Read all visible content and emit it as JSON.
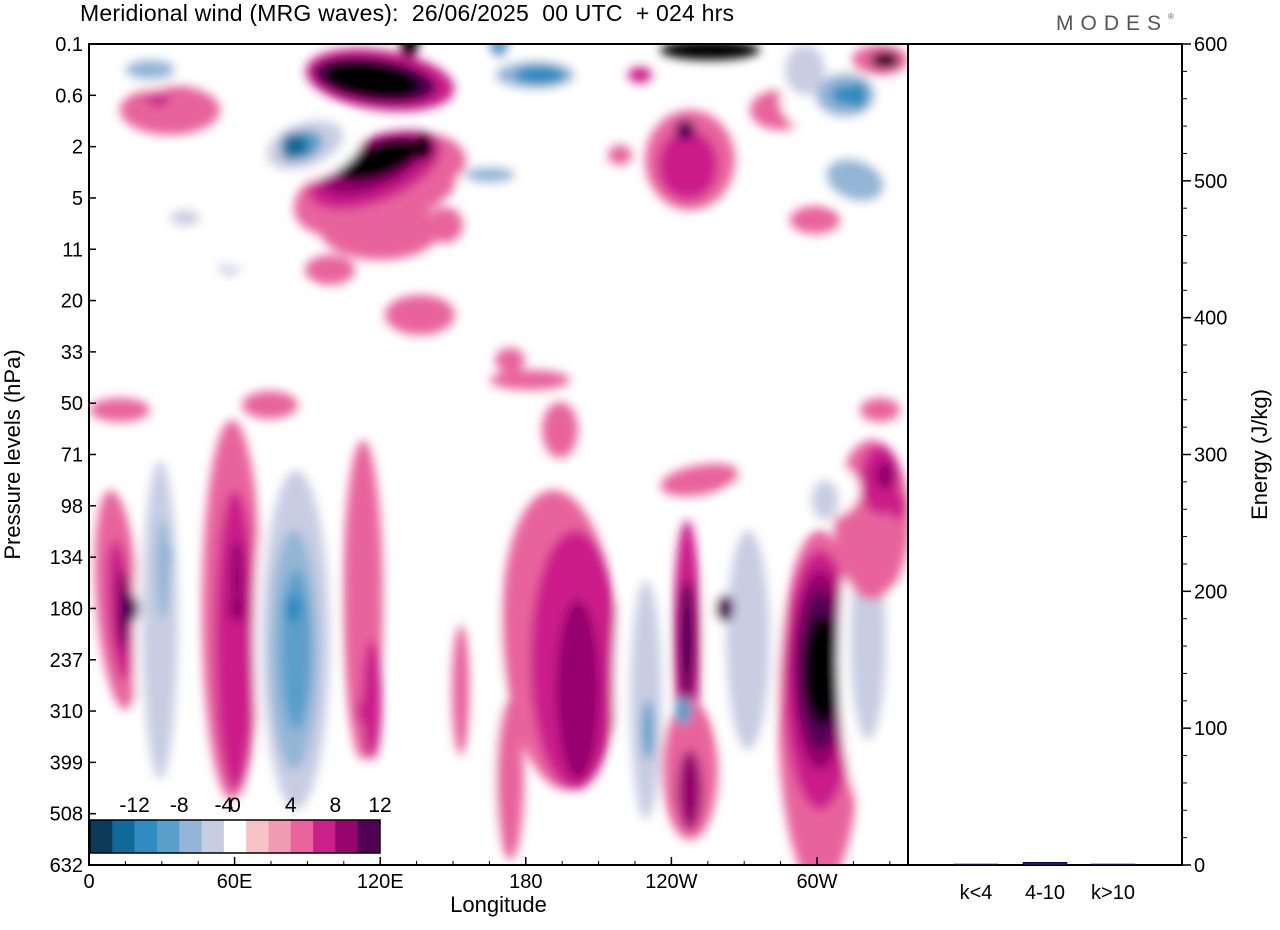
{
  "header": {
    "title": "Meridional wind (MRG waves):  26/06/2025  00 UTC  + 024 hrs",
    "brand": "MODES",
    "brand_mark": "®"
  },
  "chart_data": [
    {
      "type": "heatmap",
      "title": "Meridional wind (MRG waves):  26/06/2025  00 UTC  + 024 hrs",
      "xlabel": "Longitude",
      "ylabel": "Pressure levels (hPa)",
      "x_ticks": [
        "0",
        "60E",
        "120E",
        "180",
        "120W",
        "60W"
      ],
      "x_tick_degrees": [
        0,
        60,
        120,
        180,
        240,
        300
      ],
      "xlim": [
        0,
        337.5
      ],
      "y_ticks": [
        "0.1",
        "0.6",
        "2",
        "5",
        "11",
        "20",
        "33",
        "50",
        "71",
        "98",
        "134",
        "180",
        "237",
        "310",
        "399",
        "508",
        "632"
      ],
      "y_reversed": true,
      "colorbar": {
        "labels": [
          "-12",
          "-8",
          "-4",
          "0",
          "4",
          "8",
          "12"
        ],
        "levels": [
          -14,
          -12,
          -10,
          -8,
          -6,
          -4,
          -2,
          2,
          4,
          6,
          8,
          10,
          12,
          14
        ],
        "colors": [
          "#0c3b5a",
          "#0f6a9a",
          "#2f8bc0",
          "#5a9fcb",
          "#93b6d6",
          "#c8cde2",
          "#ffffff",
          "#f6c4c6",
          "#f19cb3",
          "#e8649d",
          "#cb1f8a",
          "#96046e",
          "#520055"
        ]
      },
      "features": [
        {
          "lon": 17,
          "level": "180",
          "value": 10
        },
        {
          "lon": 31,
          "level": "134",
          "value": -7
        },
        {
          "lon": 61,
          "level": "180",
          "value": 8
        },
        {
          "lon": 84,
          "level": "180",
          "value": -11
        },
        {
          "lon": 114,
          "level": "310",
          "value": 6
        },
        {
          "lon": 132,
          "level": "0.1",
          "value": 14
        },
        {
          "lon": 138,
          "level": "2",
          "value": 13
        },
        {
          "lon": 83,
          "level": "2",
          "value": -13
        },
        {
          "lon": 169,
          "level": "0.1",
          "value": -10
        },
        {
          "lon": 262,
          "level": "180",
          "value": 10
        },
        {
          "lon": 245,
          "level": "310",
          "value": -9
        },
        {
          "lon": 302,
          "level": "237",
          "value": 14
        },
        {
          "lon": 317,
          "level": "0.6",
          "value": -12
        },
        {
          "lon": 333,
          "level": "98",
          "value": 7
        }
      ],
      "grid": false
    },
    {
      "type": "bar",
      "categories": [
        "k<4",
        "4-10",
        "k>10"
      ],
      "values": [
        0,
        2,
        0
      ],
      "ylabel": "Energy (J/kg)",
      "ylim": [
        0,
        600
      ],
      "y_ticks": [
        "0",
        "100",
        "200",
        "300",
        "400",
        "500",
        "600"
      ],
      "bar_color": "#1a1a8c"
    }
  ]
}
